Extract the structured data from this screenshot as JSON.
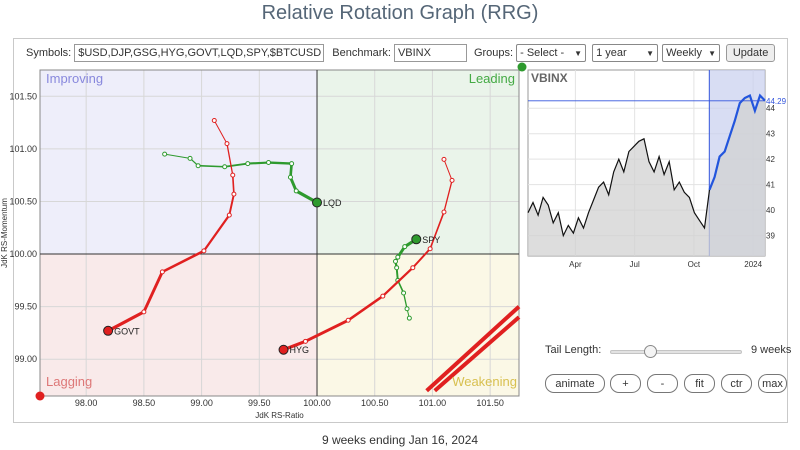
{
  "page": {
    "title": "Relative Rotation Graph (RRG)",
    "footer": "9 weeks ending Jan 16, 2024"
  },
  "toolbar": {
    "symbols_label": "Symbols:",
    "symbols_value": "$USD,DJP,GSG,HYG,GOVT,LQD,SPY,$BTCUSD",
    "benchmark_label": "Benchmark:",
    "benchmark_value": "VBINX",
    "groups_label": "Groups:",
    "groups_value": "- Select -",
    "period_value": "1 year",
    "frequency_value": "Weekly",
    "update_label": "Update"
  },
  "controls": {
    "tail_length_label": "Tail Length:",
    "tail_length_value": "9 weeks",
    "tail_length_fraction": 0.3,
    "buttons": [
      "animate",
      "+",
      "-",
      "fit",
      "ctr",
      "max"
    ]
  },
  "colors": {
    "green": "#2e9a2e",
    "red": "#e02020",
    "axis": "#333333",
    "benchmark_line": "#2255dd"
  },
  "chart_data": [
    {
      "type": "scatter",
      "title": "",
      "xlabel": "JdK RS-Ratio",
      "ylabel": "JdK RS-Momentum",
      "xlim": [
        97.6,
        101.75
      ],
      "ylim": [
        98.65,
        101.75
      ],
      "x_ticks": [
        "98.00",
        "98.50",
        "99.00",
        "99.50",
        "100.00",
        "100.50",
        "101.00",
        "101.50"
      ],
      "y_ticks": [
        "99.00",
        "99.50",
        "100.00",
        "100.50",
        "101.00",
        "101.50"
      ],
      "quadrants": {
        "top_left": "Improving",
        "top_right": "Leading",
        "bottom_left": "Lagging",
        "bottom_right": "Weakening"
      },
      "grid": true,
      "series": [
        {
          "name": "LQD",
          "color": "#2e9a2e",
          "x": [
            98.68,
            98.9,
            98.97,
            99.2,
            99.4,
            99.58,
            99.78,
            99.77,
            99.82,
            100.0
          ],
          "y": [
            100.95,
            100.91,
            100.84,
            100.83,
            100.86,
            100.87,
            100.86,
            100.73,
            100.6,
            100.49
          ]
        },
        {
          "name": "SPY",
          "color": "#2e9a2e",
          "x": [
            100.8,
            100.78,
            100.75,
            100.7,
            100.69,
            100.68,
            100.7,
            100.76,
            100.86
          ],
          "y": [
            99.39,
            99.48,
            99.63,
            99.75,
            99.87,
            99.93,
            99.97,
            100.07,
            100.14
          ]
        },
        {
          "name": "GOVT",
          "color": "#e02020",
          "x": [
            99.11,
            99.22,
            99.27,
            99.28,
            99.24,
            99.02,
            98.66,
            98.5,
            98.19
          ],
          "y": [
            101.27,
            101.05,
            100.75,
            100.57,
            100.37,
            100.03,
            99.83,
            99.45,
            99.27
          ]
        },
        {
          "name": "HYG",
          "color": "#e02020",
          "x": [
            101.1,
            101.17,
            101.1,
            100.98,
            100.83,
            100.57,
            100.27,
            99.9,
            99.71
          ],
          "y": [
            100.9,
            100.7,
            100.4,
            100.05,
            99.87,
            99.6,
            99.37,
            99.17,
            99.09
          ]
        },
        {
          "name": "",
          "color": "#e02020",
          "x": [
            100.95,
            101.75
          ],
          "y": [
            98.7,
            99.5
          ]
        },
        {
          "name": "",
          "color": "#e02020",
          "x": [
            101.02,
            101.75
          ],
          "y": [
            98.7,
            99.4
          ]
        }
      ]
    },
    {
      "type": "area",
      "title": "VBINX",
      "last_value": "44.29",
      "y_ticks": [
        "39",
        "40",
        "41",
        "42",
        "43",
        "44"
      ],
      "x_ticks": [
        "Apr",
        "Jul",
        "Oct",
        "2024"
      ],
      "ylim": [
        38.2,
        45.5
      ],
      "highlight_from": 0.765,
      "values": [
        39.9,
        40.3,
        39.8,
        40.5,
        40.2,
        39.5,
        39.9,
        39.0,
        39.4,
        39.1,
        39.7,
        39.3,
        39.9,
        40.4,
        40.9,
        41.1,
        40.6,
        41.5,
        42.0,
        41.5,
        42.3,
        42.5,
        42.7,
        42.8,
        41.9,
        41.5,
        42.1,
        41.4,
        41.9,
        40.8,
        41.1,
        40.7,
        40.5,
        39.9,
        39.6,
        39.3,
        40.8,
        41.3,
        42.1,
        42.3,
        42.9,
        43.5,
        44.2,
        44.4,
        44.5,
        43.9,
        44.5,
        44.3
      ]
    }
  ]
}
